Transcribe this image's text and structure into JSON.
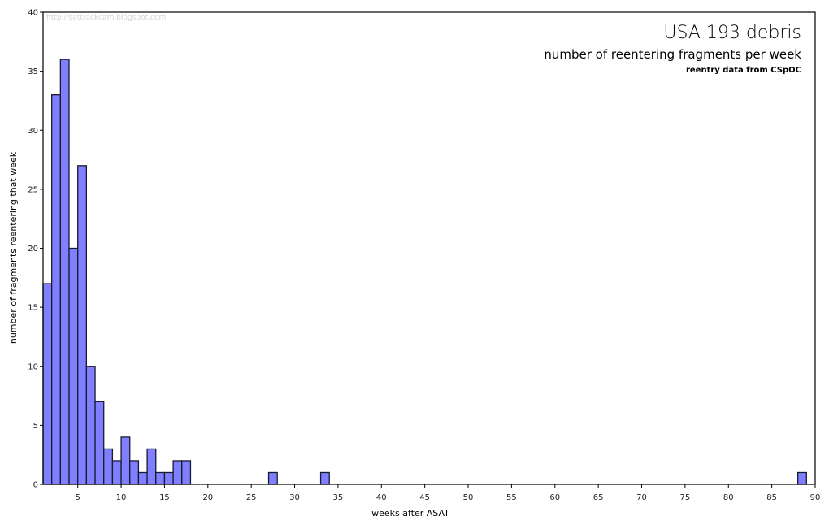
{
  "chart_data": {
    "type": "bar",
    "title": "USA 193 debris",
    "subtitle": "number of reentering fragments per week",
    "source_note": "reentry data from CSpOC",
    "watermark": "http://sattrackcam.blogspot.com",
    "xlabel": "weeks after ASAT",
    "ylabel": "number of fragments reentering that week",
    "xlim": [
      1,
      90
    ],
    "ylim": [
      0,
      40
    ],
    "x_ticks": [
      5,
      10,
      15,
      20,
      25,
      30,
      35,
      40,
      45,
      50,
      55,
      60,
      65,
      70,
      75,
      80,
      85,
      90
    ],
    "y_ticks": [
      0,
      5,
      10,
      15,
      20,
      25,
      30,
      35,
      40
    ],
    "grid": false,
    "bar_color": "#7f7fff",
    "bar_edge_color": "#1a1a2e",
    "bins": [
      {
        "week_start": 1,
        "week_end": 2,
        "count": 17
      },
      {
        "week_start": 2,
        "week_end": 3,
        "count": 33
      },
      {
        "week_start": 3,
        "week_end": 4,
        "count": 36
      },
      {
        "week_start": 4,
        "week_end": 5,
        "count": 20
      },
      {
        "week_start": 5,
        "week_end": 6,
        "count": 27
      },
      {
        "week_start": 6,
        "week_end": 7,
        "count": 10
      },
      {
        "week_start": 7,
        "week_end": 8,
        "count": 7
      },
      {
        "week_start": 8,
        "week_end": 9,
        "count": 3
      },
      {
        "week_start": 9,
        "week_end": 10,
        "count": 2
      },
      {
        "week_start": 10,
        "week_end": 11,
        "count": 4
      },
      {
        "week_start": 11,
        "week_end": 12,
        "count": 2
      },
      {
        "week_start": 12,
        "week_end": 13,
        "count": 1
      },
      {
        "week_start": 13,
        "week_end": 14,
        "count": 3
      },
      {
        "week_start": 14,
        "week_end": 15,
        "count": 1
      },
      {
        "week_start": 15,
        "week_end": 16,
        "count": 1
      },
      {
        "week_start": 16,
        "week_end": 17,
        "count": 2
      },
      {
        "week_start": 17,
        "week_end": 18,
        "count": 2
      },
      {
        "week_start": 27,
        "week_end": 28,
        "count": 1
      },
      {
        "week_start": 33,
        "week_end": 34,
        "count": 1
      },
      {
        "week_start": 88,
        "week_end": 89,
        "count": 1
      }
    ]
  }
}
